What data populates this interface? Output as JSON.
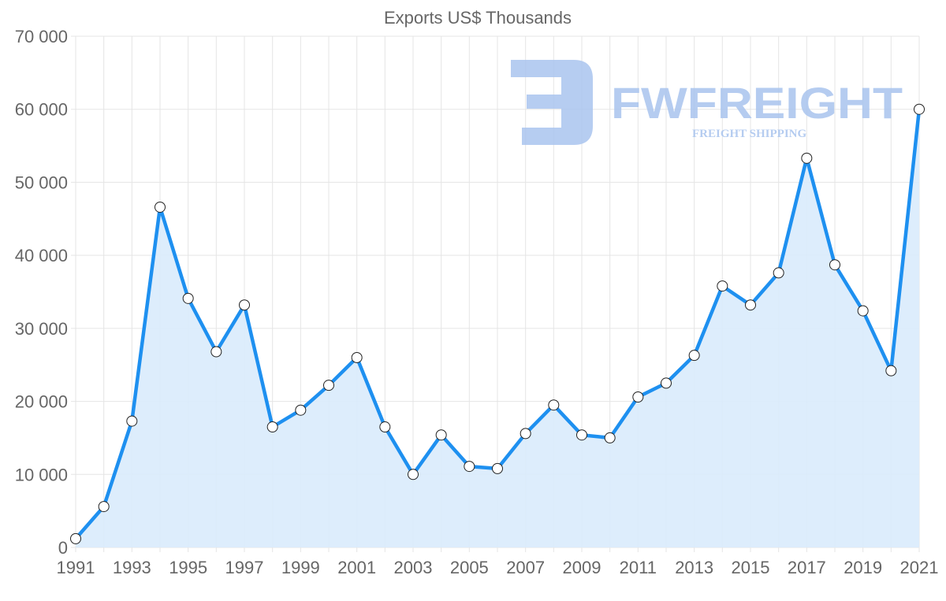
{
  "chart_data": {
    "type": "area",
    "title": "Exports US$ Thousands",
    "xlabel": "",
    "ylabel": "",
    "ylim": [
      0,
      70000
    ],
    "yticks": [
      0,
      10000,
      20000,
      30000,
      40000,
      50000,
      60000,
      70000
    ],
    "ytick_labels": [
      "0",
      "10 000",
      "20 000",
      "30 000",
      "40 000",
      "50 000",
      "60 000",
      "70 000"
    ],
    "xtick_labels": [
      "1991",
      "1993",
      "1995",
      "1997",
      "1999",
      "2001",
      "2003",
      "2005",
      "2007",
      "2009",
      "2011",
      "2013",
      "2015",
      "2017",
      "2019",
      "2021"
    ],
    "grid": true,
    "series": [
      {
        "name": "Exports US$ Thousands",
        "x": [
          1991,
          1992,
          1993,
          1994,
          1995,
          1996,
          1997,
          1998,
          1999,
          2000,
          2001,
          2002,
          2003,
          2004,
          2005,
          2006,
          2007,
          2008,
          2009,
          2010,
          2011,
          2012,
          2013,
          2014,
          2015,
          2016,
          2017,
          2018,
          2019,
          2020,
          2021
        ],
        "values": [
          1200,
          5600,
          17300,
          46600,
          34100,
          26800,
          33200,
          16500,
          18800,
          22200,
          26000,
          16500,
          10000,
          15400,
          11100,
          10800,
          15600,
          19500,
          15400,
          15000,
          20600,
          22500,
          26300,
          35800,
          33200,
          37600,
          53300,
          38700,
          32400,
          24200,
          60000
        ]
      }
    ],
    "colors": {
      "line": "#1e90f0",
      "fill": "#d9ebfc",
      "grid": "#e5e5e5",
      "watermark": "#a9c4ee"
    }
  },
  "watermark": {
    "brand": "FWFREIGHT",
    "tagline": "FREIGHT SHIPPING"
  }
}
